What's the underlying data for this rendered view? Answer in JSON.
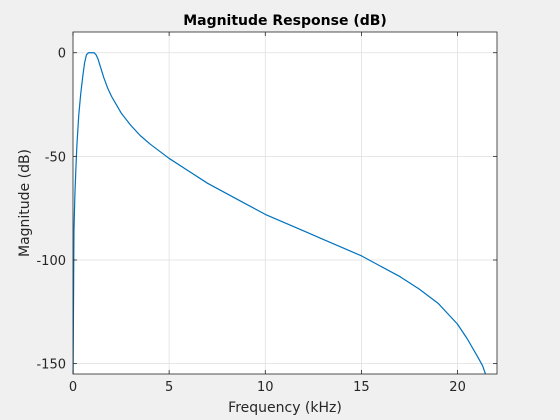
{
  "chart_data": {
    "type": "line",
    "title": "Magnitude Response (dB)",
    "xlabel": "Frequency (kHz)",
    "ylabel": "Magnitude (dB)",
    "xlim": [
      0,
      22.05
    ],
    "ylim": [
      -155,
      10
    ],
    "xticks": [
      0,
      5,
      10,
      15,
      20
    ],
    "xtick_labels": [
      "0",
      "5",
      "10",
      "15",
      "20"
    ],
    "yticks": [
      0,
      -50,
      -100,
      -150
    ],
    "ytick_labels": [
      "0",
      "-50",
      "-100",
      "-150"
    ],
    "grid": true,
    "line_color": "#0072bd",
    "series": [
      {
        "x": [
          0.0,
          0.05,
          0.1,
          0.15,
          0.2,
          0.3,
          0.4,
          0.5,
          0.6,
          0.7,
          0.8,
          0.9,
          1.0,
          1.1,
          1.2,
          1.3,
          1.4,
          1.6,
          1.8,
          2.0,
          2.25,
          2.5,
          3.0,
          3.5,
          4.0,
          5.0,
          6.0,
          7.0,
          8.0,
          9.0,
          10.0,
          11.0,
          12.0,
          13.0,
          14.0,
          15.0,
          16.0,
          17.0,
          18.0,
          19.0,
          19.5,
          20.0,
          20.5,
          21.0,
          21.3,
          21.45
        ],
        "y": [
          -160,
          -86,
          -68,
          -56,
          -45,
          -30,
          -20,
          -12,
          -5,
          -1,
          0,
          0,
          0,
          0,
          -1,
          -3,
          -6,
          -12,
          -17,
          -21,
          -25,
          -29,
          -35,
          -40,
          -44,
          -51,
          -57,
          -63,
          -68,
          -73,
          -78,
          -82,
          -86,
          -90,
          -94,
          -98,
          -103,
          -108,
          -114,
          -121,
          -126,
          -131,
          -138,
          -146,
          -151,
          -155
        ]
      }
    ]
  }
}
